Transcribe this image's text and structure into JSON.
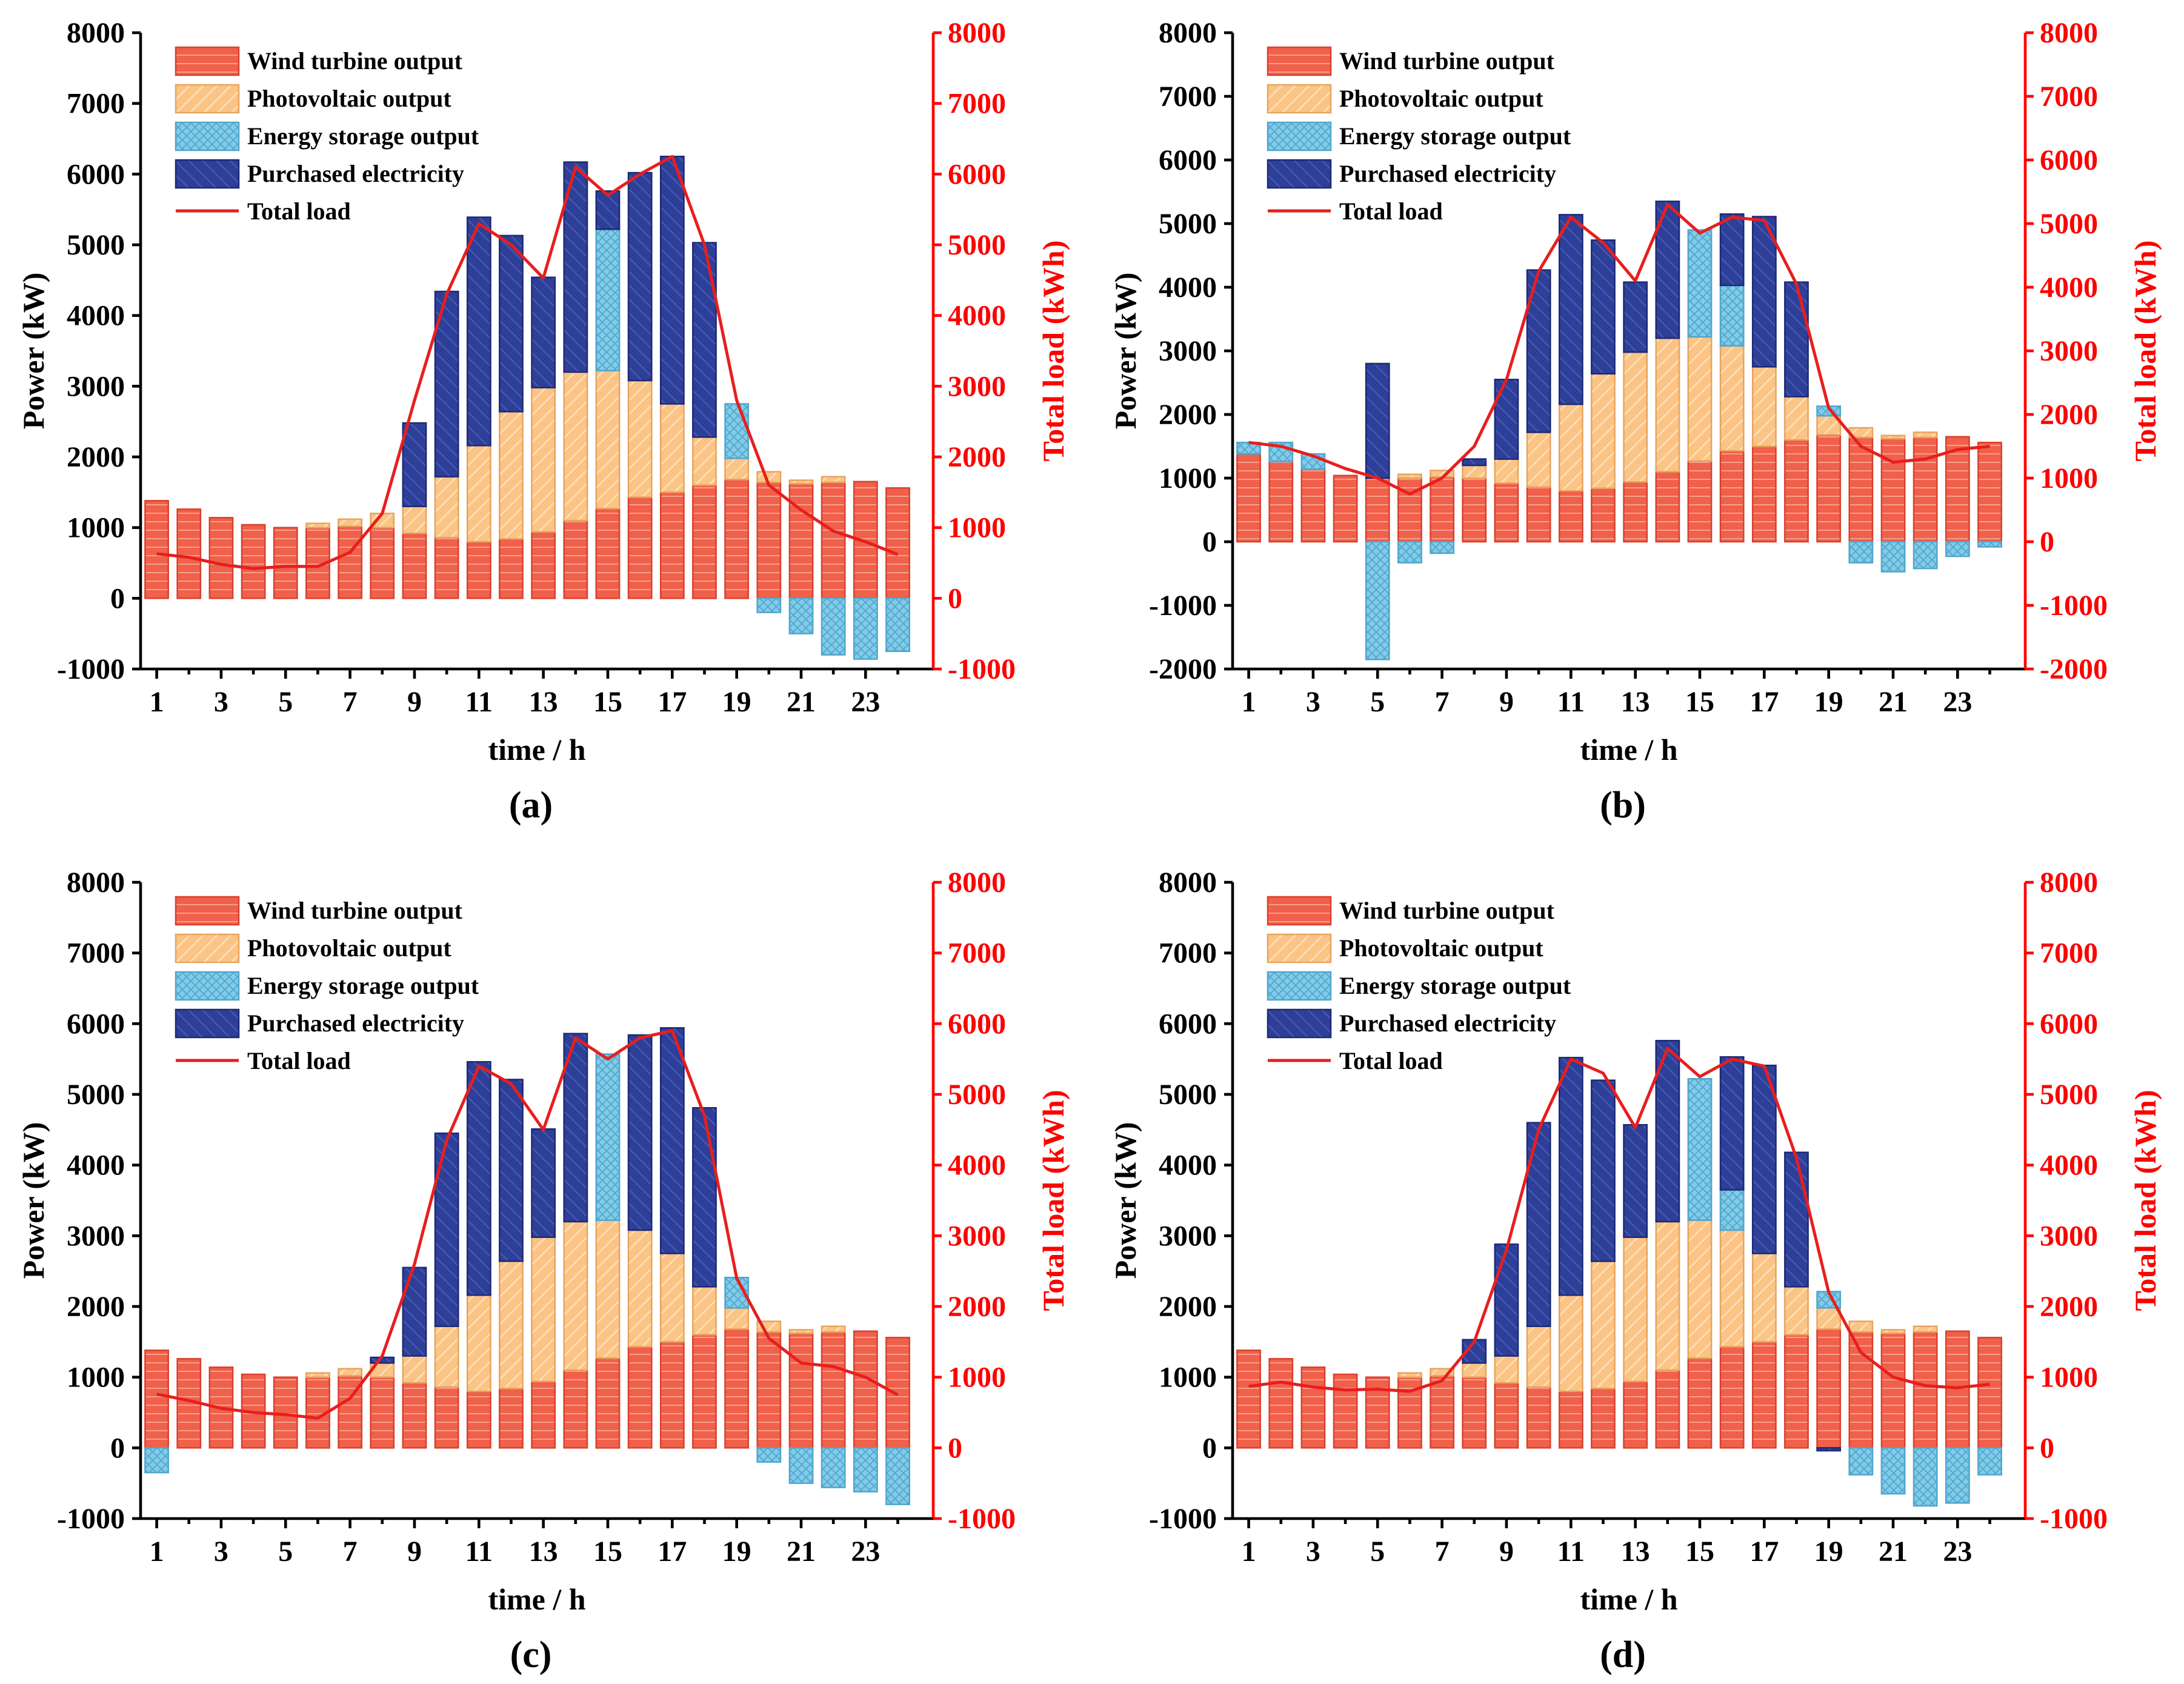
{
  "chart_data": [
    {
      "type": "bar",
      "panel_label": "(a)",
      "stacked": true,
      "xlabel": "time / h",
      "ylabel": "Power (kW)",
      "y2label": "Total load (kWh)",
      "ylim": [
        -1000,
        8000
      ],
      "y2lim": [
        -1000,
        8000
      ],
      "yticks": [
        "-1000",
        "0",
        "1000",
        "2000",
        "3000",
        "4000",
        "5000",
        "6000",
        "7000",
        "8000"
      ],
      "y2ticks": [
        "-1000",
        "0",
        "1000",
        "2000",
        "3000",
        "4000",
        "5000",
        "6000",
        "7000",
        "8000"
      ],
      "xticks": [
        "1",
        "3",
        "5",
        "7",
        "9",
        "11",
        "13",
        "15",
        "17",
        "19",
        "21",
        "23"
      ],
      "x": [
        1,
        2,
        3,
        4,
        5,
        6,
        7,
        8,
        9,
        10,
        11,
        12,
        13,
        14,
        15,
        16,
        17,
        18,
        19,
        20,
        21,
        22,
        23,
        24
      ],
      "series": [
        {
          "name": "Wind turbine output",
          "values": [
            1380,
            1260,
            1140,
            1040,
            1000,
            1000,
            1020,
            1000,
            920,
            860,
            800,
            840,
            940,
            1100,
            1270,
            1430,
            1500,
            1600,
            1680,
            1640,
            1620,
            1640,
            1650,
            1560
          ]
        },
        {
          "name": "Photovoltaic output",
          "values": [
            0,
            0,
            0,
            0,
            0,
            60,
            100,
            200,
            380,
            860,
            1360,
            1800,
            2040,
            2100,
            1950,
            1650,
            1250,
            680,
            300,
            150,
            50,
            80,
            0,
            0
          ]
        },
        {
          "name": "Energy storage output",
          "values": [
            0,
            0,
            0,
            0,
            0,
            0,
            0,
            0,
            0,
            0,
            0,
            0,
            0,
            0,
            2000,
            0,
            0,
            0,
            770,
            -200,
            -500,
            -800,
            -860,
            -750
          ]
        },
        {
          "name": "Purchased electricity",
          "values": [
            0,
            0,
            0,
            0,
            0,
            0,
            0,
            0,
            1180,
            2620,
            3230,
            2490,
            1560,
            2970,
            540,
            2940,
            3500,
            2750,
            0,
            0,
            0,
            0,
            0,
            0
          ]
        }
      ],
      "load": {
        "name": "Total load",
        "values": [
          630,
          580,
          480,
          420,
          450,
          450,
          650,
          1200,
          2800,
          4300,
          5300,
          5000,
          4530,
          6100,
          5700,
          6000,
          6250,
          5000,
          2800,
          1600,
          1250,
          950,
          800,
          620
        ]
      }
    },
    {
      "type": "bar",
      "panel_label": "(b)",
      "stacked": true,
      "xlabel": "time / h",
      "ylabel": "Power (kW)",
      "y2label": "Total load (kWh)",
      "ylim": [
        -2000,
        8000
      ],
      "y2lim": [
        -2000,
        8000
      ],
      "yticks": [
        "-2000",
        "-1000",
        "0",
        "1000",
        "2000",
        "3000",
        "4000",
        "5000",
        "6000",
        "7000",
        "8000"
      ],
      "y2ticks": [
        "-2000",
        "-1000",
        "0",
        "1000",
        "2000",
        "3000",
        "4000",
        "5000",
        "6000",
        "7000",
        "8000"
      ],
      "xticks": [
        "1",
        "3",
        "5",
        "7",
        "9",
        "11",
        "13",
        "15",
        "17",
        "19",
        "21",
        "23"
      ],
      "x": [
        1,
        2,
        3,
        4,
        5,
        6,
        7,
        8,
        9,
        10,
        11,
        12,
        13,
        14,
        15,
        16,
        17,
        18,
        19,
        20,
        21,
        22,
        23,
        24
      ],
      "series": [
        {
          "name": "Wind turbine output",
          "values": [
            1380,
            1260,
            1140,
            1040,
            1000,
            1000,
            1020,
            1000,
            920,
            860,
            800,
            840,
            940,
            1100,
            1270,
            1430,
            1500,
            1600,
            1680,
            1640,
            1620,
            1640,
            1650,
            1560
          ]
        },
        {
          "name": "Photovoltaic output",
          "values": [
            0,
            0,
            0,
            0,
            0,
            60,
            100,
            200,
            380,
            860,
            1360,
            1800,
            2040,
            2100,
            1950,
            1650,
            1250,
            680,
            300,
            150,
            50,
            80,
            0,
            0
          ]
        },
        {
          "name": "Energy storage output",
          "values": [
            180,
            300,
            240,
            0,
            -1850,
            -330,
            -180,
            0,
            0,
            0,
            0,
            0,
            0,
            0,
            1680,
            950,
            0,
            0,
            150,
            -330,
            -470,
            -420,
            -230,
            -80
          ]
        },
        {
          "name": "Purchased electricity",
          "values": [
            0,
            0,
            0,
            0,
            1800,
            0,
            0,
            100,
            1250,
            2550,
            2980,
            2100,
            1100,
            2150,
            0,
            1120,
            2360,
            1800,
            0,
            0,
            0,
            0,
            0,
            0
          ]
        }
      ],
      "load": {
        "name": "Total load",
        "values": [
          1560,
          1500,
          1350,
          1150,
          1000,
          750,
          1000,
          1500,
          2550,
          4250,
          5100,
          4700,
          4100,
          5300,
          4850,
          5100,
          5050,
          4050,
          2100,
          1500,
          1250,
          1300,
          1450,
          1500
        ]
      }
    },
    {
      "type": "bar",
      "panel_label": "(c)",
      "stacked": true,
      "xlabel": "time / h",
      "ylabel": "Power (kW)",
      "y2label": "Total load (kWh)",
      "ylim": [
        -1000,
        8000
      ],
      "y2lim": [
        -1000,
        8000
      ],
      "yticks": [
        "-1000",
        "0",
        "1000",
        "2000",
        "3000",
        "4000",
        "5000",
        "6000",
        "7000",
        "8000"
      ],
      "y2ticks": [
        "-1000",
        "0",
        "1000",
        "2000",
        "3000",
        "4000",
        "5000",
        "6000",
        "7000",
        "8000"
      ],
      "xticks": [
        "1",
        "3",
        "5",
        "7",
        "9",
        "11",
        "13",
        "15",
        "17",
        "19",
        "21",
        "23"
      ],
      "x": [
        1,
        2,
        3,
        4,
        5,
        6,
        7,
        8,
        9,
        10,
        11,
        12,
        13,
        14,
        15,
        16,
        17,
        18,
        19,
        20,
        21,
        22,
        23,
        24
      ],
      "series": [
        {
          "name": "Wind turbine output",
          "values": [
            1380,
            1260,
            1140,
            1040,
            1000,
            1000,
            1020,
            1000,
            920,
            860,
            800,
            840,
            940,
            1100,
            1270,
            1430,
            1500,
            1600,
            1680,
            1640,
            1620,
            1640,
            1650,
            1560
          ]
        },
        {
          "name": "Photovoltaic output",
          "values": [
            0,
            0,
            0,
            0,
            0,
            60,
            100,
            200,
            380,
            860,
            1360,
            1800,
            2040,
            2100,
            1950,
            1650,
            1250,
            680,
            300,
            150,
            50,
            80,
            0,
            0
          ]
        },
        {
          "name": "Energy storage output",
          "values": [
            -350,
            0,
            0,
            0,
            0,
            0,
            0,
            0,
            0,
            0,
            0,
            0,
            0,
            0,
            2350,
            0,
            0,
            0,
            430,
            -200,
            -500,
            -560,
            -620,
            -800
          ]
        },
        {
          "name": "Purchased electricity",
          "values": [
            0,
            0,
            0,
            0,
            0,
            0,
            0,
            80,
            1250,
            2730,
            3300,
            2570,
            1530,
            2660,
            0,
            2760,
            3190,
            2530,
            0,
            0,
            0,
            0,
            0,
            0
          ]
        }
      ],
      "load": {
        "name": "Total load",
        "values": [
          760,
          670,
          560,
          500,
          470,
          420,
          700,
          1300,
          2600,
          4350,
          5400,
          5150,
          4500,
          5800,
          5500,
          5800,
          5900,
          4700,
          2400,
          1550,
          1200,
          1150,
          1000,
          750
        ]
      }
    },
    {
      "type": "bar",
      "panel_label": "(d)",
      "stacked": true,
      "xlabel": "time / h",
      "ylabel": "Power (kW)",
      "y2label": "Total load (kWh)",
      "ylim": [
        -1000,
        8000
      ],
      "y2lim": [
        -1000,
        8000
      ],
      "yticks": [
        "-1000",
        "0",
        "1000",
        "2000",
        "3000",
        "4000",
        "5000",
        "6000",
        "7000",
        "8000"
      ],
      "y2ticks": [
        "-1000",
        "0",
        "1000",
        "2000",
        "3000",
        "4000",
        "5000",
        "6000",
        "7000",
        "8000"
      ],
      "xticks": [
        "1",
        "3",
        "5",
        "7",
        "9",
        "11",
        "13",
        "15",
        "17",
        "19",
        "21",
        "23"
      ],
      "x": [
        1,
        2,
        3,
        4,
        5,
        6,
        7,
        8,
        9,
        10,
        11,
        12,
        13,
        14,
        15,
        16,
        17,
        18,
        19,
        20,
        21,
        22,
        23,
        24
      ],
      "series": [
        {
          "name": "Wind turbine output",
          "values": [
            1380,
            1260,
            1140,
            1040,
            1000,
            1000,
            1020,
            1000,
            920,
            860,
            800,
            840,
            940,
            1100,
            1270,
            1430,
            1500,
            1600,
            1680,
            1640,
            1620,
            1640,
            1650,
            1560
          ]
        },
        {
          "name": "Photovoltaic output",
          "values": [
            0,
            0,
            0,
            0,
            0,
            60,
            100,
            200,
            380,
            860,
            1360,
            1800,
            2040,
            2100,
            1950,
            1650,
            1250,
            680,
            300,
            150,
            50,
            80,
            0,
            0
          ]
        },
        {
          "name": "Energy storage output",
          "values": [
            0,
            0,
            0,
            0,
            0,
            0,
            0,
            0,
            0,
            0,
            0,
            0,
            0,
            0,
            2000,
            570,
            0,
            0,
            230,
            -380,
            -650,
            -820,
            -780,
            -380
          ]
        },
        {
          "name": "Purchased electricity",
          "values": [
            0,
            0,
            0,
            0,
            0,
            0,
            0,
            330,
            1580,
            2880,
            3360,
            2560,
            1590,
            2560,
            0,
            1880,
            2660,
            1900,
            -40,
            0,
            0,
            0,
            0,
            0
          ]
        }
      ],
      "load": {
        "name": "Total load",
        "values": [
          870,
          930,
          860,
          820,
          830,
          800,
          950,
          1500,
          2800,
          4500,
          5500,
          5300,
          4530,
          5650,
          5250,
          5500,
          5400,
          4100,
          2200,
          1350,
          1000,
          880,
          850,
          900
        ]
      }
    }
  ],
  "legend": {
    "wind": "Wind turbine output",
    "pv": "Photovoltaic output",
    "storage": "Energy storage output",
    "purchased": "Purchased electricity",
    "load": "Total load"
  },
  "colors": {
    "wind": "#f0604a",
    "pv": "#fbc485",
    "storage": "#7fcde9",
    "purchased": "#2d3f97",
    "load": "#e81e1e",
    "right_axis": "#ff0000"
  }
}
